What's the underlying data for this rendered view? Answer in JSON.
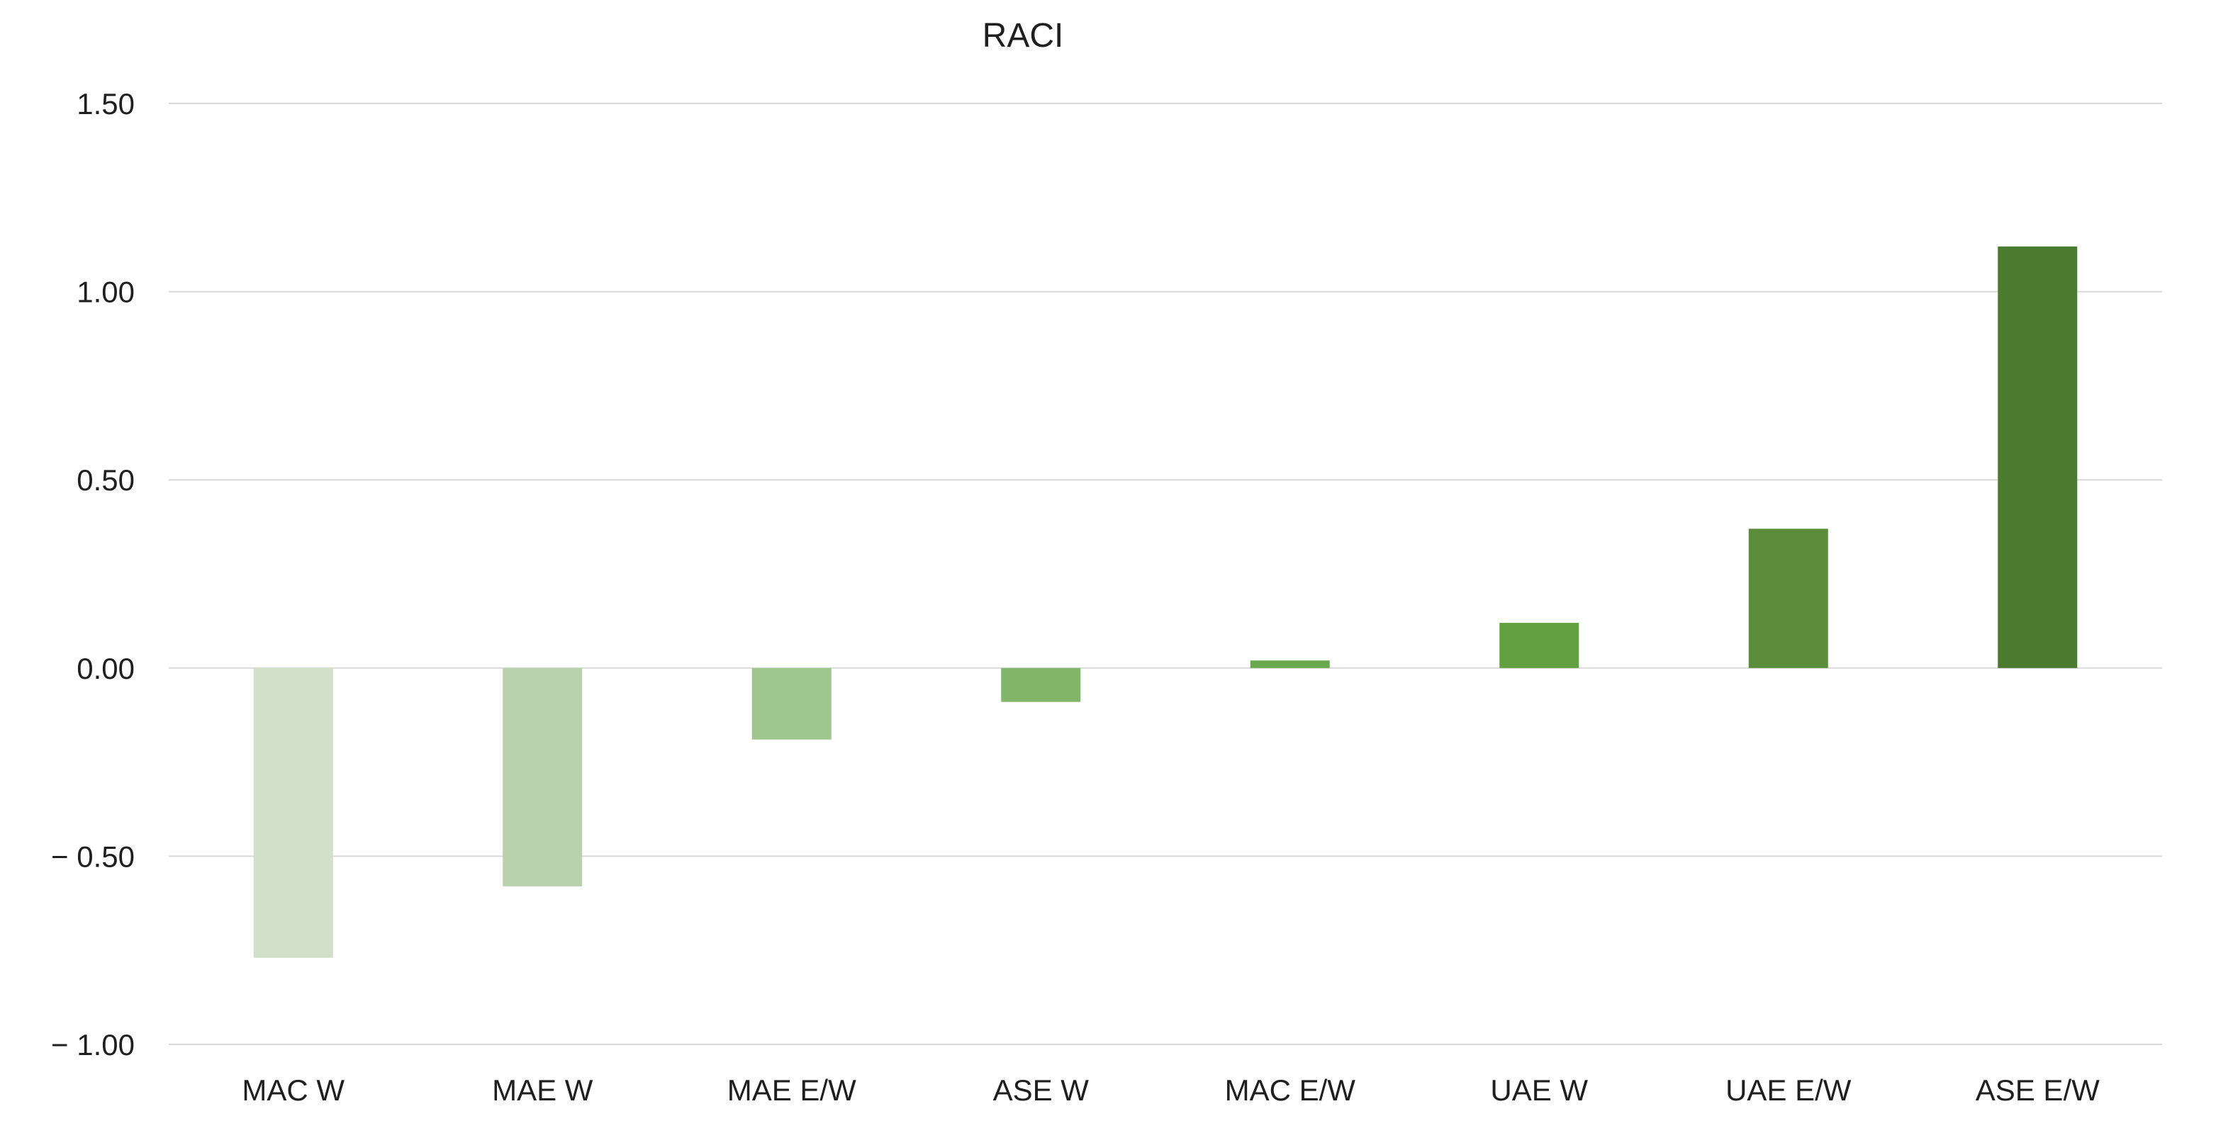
{
  "chart_data": {
    "type": "bar",
    "title": "RACI",
    "xlabel": "",
    "ylabel": "",
    "categories": [
      "MAC W",
      "MAE W",
      "MAE E/W",
      "ASE W",
      "MAC E/W",
      "UAE W",
      "UAE E/W",
      "ASE E/W"
    ],
    "values": [
      -0.77,
      -0.58,
      -0.19,
      -0.09,
      0.02,
      0.12,
      0.37,
      1.12
    ],
    "colors": [
      "#d1e0c8",
      "#b7d2ac",
      "#a0c690",
      "#82b56a",
      "#6aa84f",
      "#62a042",
      "#5a8c3a",
      "#4b7a31"
    ],
    "ylim": [
      -1.0,
      1.5
    ],
    "yticks": [
      1.5,
      1.0,
      0.5,
      0.0,
      -0.5,
      -1.0
    ],
    "ytick_labels": [
      "1.50",
      "1.00",
      "0.50",
      "0.00",
      "− 0.50",
      "− 1.00"
    ],
    "grid": true,
    "legend": "none"
  }
}
